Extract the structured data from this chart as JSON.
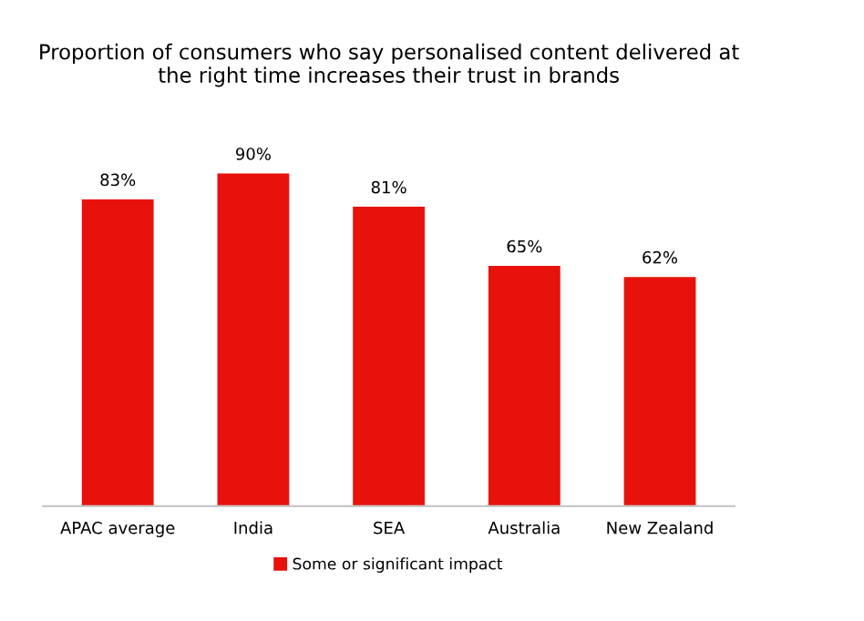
{
  "chart_data": {
    "type": "bar",
    "title": "Proportion of consumers who say personalised content delivered at\nthe right time increases their trust in brands",
    "categories": [
      "APAC average",
      "India",
      "SEA",
      "Australia",
      "New Zealand"
    ],
    "series": [
      {
        "name": "Some or significant impact",
        "color": "#e8120c",
        "values": [
          83,
          90,
          81,
          65,
          62
        ],
        "value_labels": [
          "83%",
          "90%",
          "81%",
          "65%",
          "62%"
        ]
      }
    ],
    "legend": "bottom",
    "grid": false
  }
}
